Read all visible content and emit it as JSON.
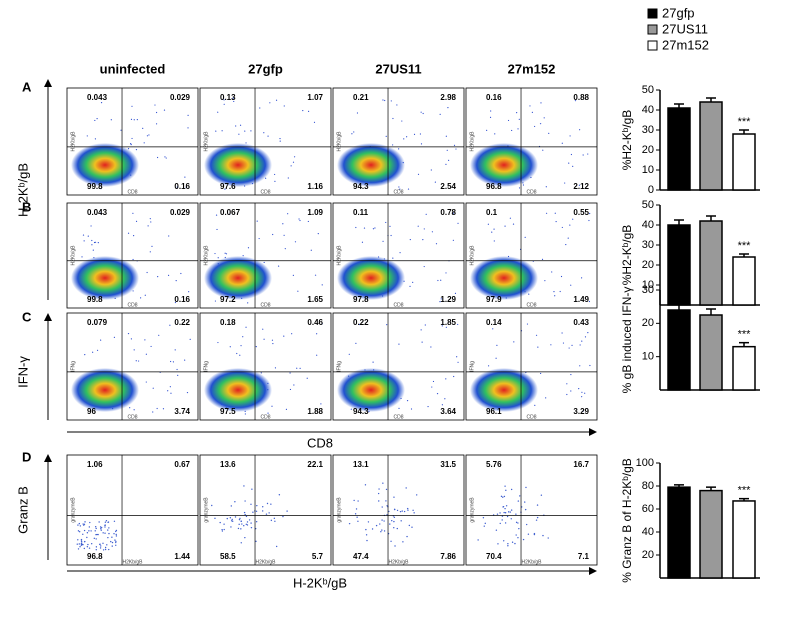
{
  "legend": [
    {
      "name": "27gfp",
      "color": "#000000"
    },
    {
      "name": "27US11",
      "color": "#999999"
    },
    {
      "name": "27m152",
      "color": "#ffffff"
    }
  ],
  "columns": [
    "uninfected",
    "27gfp",
    "27US11",
    "27m152"
  ],
  "rows": [
    {
      "label": "A",
      "y_label": "H2Kb/gB",
      "x_label": "CD8",
      "quadrants": [
        [
          0.043,
          0.029,
          99.8,
          0.16
        ],
        [
          0.13,
          1.07,
          97.6,
          1.16
        ],
        [
          0.21,
          2.98,
          94.3,
          2.54
        ],
        [
          0.16,
          0.88,
          96.8,
          2.12
        ]
      ]
    },
    {
      "label": "B",
      "y_label": "H2Kb/gB",
      "x_label": "CD8",
      "quadrants": [
        [
          0.043,
          0.029,
          99.8,
          0.16
        ],
        [
          0.067,
          1.09,
          97.2,
          1.65
        ],
        [
          0.11,
          0.78,
          97.8,
          1.29
        ],
        [
          0.1,
          0.55,
          97.9,
          1.49
        ]
      ]
    },
    {
      "label": "C",
      "y_label": "IFNg",
      "x_label": "CD8",
      "quadrants": [
        [
          0.079,
          0.22,
          96,
          3.74
        ],
        [
          0.18,
          0.46,
          97.5,
          1.88
        ],
        [
          0.22,
          1.85,
          94.3,
          3.64
        ],
        [
          0.14,
          0.43,
          96.1,
          3.29
        ]
      ]
    },
    {
      "label": "D",
      "y_label": "granzymeB",
      "x_label": "H2Kb/gB",
      "quadrants": [
        [
          1.06,
          0.67,
          96.8,
          1.44
        ],
        [
          13.6,
          22.1,
          58.5,
          5.7
        ],
        [
          13.1,
          31.5,
          47.4,
          7.86
        ],
        [
          5.76,
          16.7,
          70.4,
          7.1
        ]
      ]
    }
  ],
  "axis_titles": {
    "ab_y": "H-2Kᵇ/gB",
    "c_y": "IFN-γ",
    "abc_x": "CD8",
    "d_y": "Granz B",
    "d_x": "H-2Kᵇ/gB"
  },
  "chart_data": [
    {
      "type": "bar",
      "y_label": "%H2-Kᵇ/gB",
      "values": [
        41,
        44,
        28
      ],
      "errors": [
        2,
        2,
        2
      ],
      "significance": [
        null,
        null,
        "***"
      ],
      "ylim": [
        0,
        50
      ],
      "yticks": [
        0,
        10,
        20,
        30,
        40,
        50
      ]
    },
    {
      "type": "bar",
      "y_label": "%H2-Kᵇ/gB",
      "values": [
        40,
        42,
        24
      ],
      "errors": [
        2.5,
        2.5,
        1.5
      ],
      "significance": [
        null,
        null,
        "***"
      ],
      "ylim": [
        0,
        50
      ],
      "yticks": [
        10,
        20,
        30,
        40,
        50
      ]
    },
    {
      "type": "bar",
      "y_label": "% gB induced IFN-γ",
      "values": [
        24,
        22.5,
        13
      ],
      "errors": [
        1.8,
        1.8,
        1.2
      ],
      "significance": [
        null,
        null,
        "***"
      ],
      "ylim": [
        0,
        30
      ],
      "yticks": [
        10,
        20,
        30
      ]
    },
    {
      "type": "bar",
      "y_label": "% Granz B of H-2Kᵇ/gB",
      "values": [
        79,
        76,
        67
      ],
      "errors": [
        2,
        3,
        2
      ],
      "significance": [
        null,
        null,
        "***"
      ],
      "ylim": [
        0,
        100
      ],
      "yticks": [
        20,
        40,
        60,
        80,
        100
      ]
    }
  ]
}
